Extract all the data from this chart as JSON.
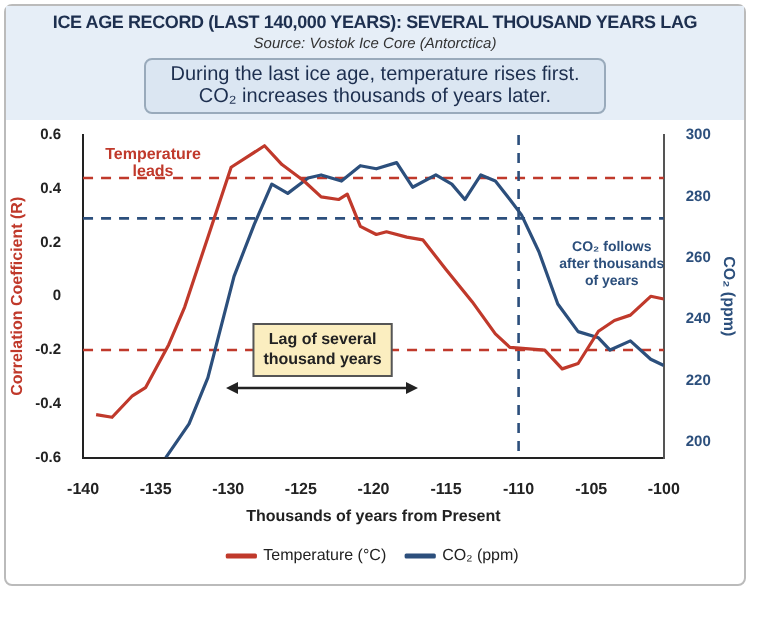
{
  "chart_data": {
    "type": "line",
    "title": "ICE AGE RECORD (LAST 140,000 YEARS): SEVERAL THOUSAND YEARS LAG",
    "subtitle": "Source: Vostok Ice Core (Antorctica)",
    "xlabel": "Thousands of years from Present",
    "ylabel": "Correlation Coefficient (R)",
    "y2label": "CO₂ (ppm)",
    "annotations": [
      "During the last ice age, temperature rises first.",
      "CO₂ increases thousands of years later.",
      "Temperature\nleads",
      "CO₂ follows\nafter thousands\nof years",
      {
        "text": "Lag of several\nthousand years",
        "x": -123.5,
        "y": -0.2
      }
    ],
    "series": [
      {
        "name": "Temperature (°C)",
        "color": "#c0392b",
        "x": [
          -139.1,
          -138,
          -136.6,
          -135.7,
          -134.1,
          -133,
          -131.4,
          -129.8,
          -127.5,
          -126.3,
          -124.8,
          -123.6,
          -122.4,
          -121.8,
          -120.9,
          -119.8,
          -119.1,
          -117.7,
          -116.6,
          -115,
          -113.2,
          -111.6,
          -110.6,
          -108.2,
          -107,
          -105.9,
          -104.5,
          -103.4,
          -102.3,
          -100.9,
          -100
        ],
        "values": [
          -0.44,
          -0.45,
          -0.37,
          -0.34,
          -0.18,
          -0.04,
          0.22,
          0.48,
          0.56,
          0.49,
          0.43,
          0.37,
          0.36,
          0.38,
          0.26,
          0.23,
          0.24,
          0.22,
          0.21,
          0.1,
          -0.02,
          -0.14,
          -0.19,
          -0.2,
          -0.27,
          -0.25,
          -0.13,
          -0.09,
          -0.07,
          0,
          -0.01
        ]
      },
      {
        "name": "CO₂ (ppm)",
        "color": "#2c4f7c",
        "axis": "y2",
        "x": [
          -134.3,
          -132.7,
          -131.4,
          -129.6,
          -128.2,
          -127,
          -125.9,
          -124.5,
          -123.6,
          -122.2,
          -120.9,
          -119.8,
          -118.4,
          -117.3,
          -115.7,
          -114.6,
          -113.7,
          -112.6,
          -111.6,
          -110.6,
          -109.8,
          -108.6,
          -107.3,
          -105.9,
          -104.5,
          -103.7,
          -102.3,
          -100.9,
          -100
        ],
        "values": [
          195,
          206,
          221,
          254,
          271,
          284,
          281,
          286,
          287,
          285,
          290,
          289,
          291,
          283,
          287,
          284,
          279,
          287,
          285,
          279,
          274,
          262,
          245,
          236,
          234,
          230,
          233,
          227,
          225
        ]
      }
    ],
    "xlim": [
      -140,
      -100
    ],
    "xticks": [
      -140,
      -135,
      -130,
      -125,
      -120,
      -115,
      -110,
      -105,
      -100
    ],
    "ylim": [
      -0.6,
      0.6
    ],
    "yticks": [
      -0.6,
      -0.4,
      -0.2,
      0,
      0.2,
      0.4,
      0.6
    ],
    "y2lim": [
      195,
      300
    ],
    "y2ticks": [
      200,
      220,
      240,
      260,
      280,
      300
    ],
    "ref_lines": [
      {
        "axis": "y",
        "value": 0.44,
        "color": "#c0392b",
        "line_style": "dashed"
      },
      {
        "axis": "y",
        "value": -0.2,
        "color": "#c0392b",
        "line_style": "dashed"
      },
      {
        "axis": "y",
        "value": 0.29,
        "color": "#2c4f7c",
        "line_style": "dashed"
      },
      {
        "axis": "x",
        "value": -110,
        "color": "#2c4f7c",
        "line_style": "dashed"
      }
    ],
    "grid": false,
    "legend": "bottom",
    "marker": "none",
    "line_style": "solid"
  }
}
